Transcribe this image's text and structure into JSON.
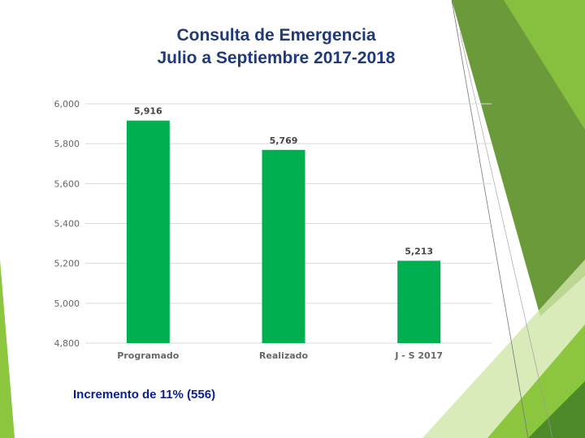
{
  "slide": {
    "title_line1": "Consulta de Emergencia",
    "title_line2": "Julio a Septiembre 2017-2018",
    "footnote": "Incremento de  11% (556)",
    "accent_colors": [
      "#6a9a3a",
      "#8cc63f",
      "#b8dc8a",
      "#4f8a2a"
    ]
  },
  "chart_data": {
    "type": "bar",
    "categories": [
      "Programado",
      "Realizado",
      "J - S 2017"
    ],
    "values": [
      5916,
      5769,
      5213
    ],
    "data_labels": [
      "5,916",
      "5,769",
      "5,213"
    ],
    "title": "",
    "xlabel": "",
    "ylabel": "",
    "ylim": [
      4800,
      6000
    ],
    "y_ticks": [
      4800,
      5000,
      5200,
      5400,
      5600,
      5800,
      6000
    ],
    "y_tick_labels": [
      "4,800",
      "5,000",
      "5,200",
      "5,400",
      "5,600",
      "5,800",
      "6,000"
    ],
    "grid": true,
    "legend": "none",
    "bar_color": "#00b050"
  }
}
